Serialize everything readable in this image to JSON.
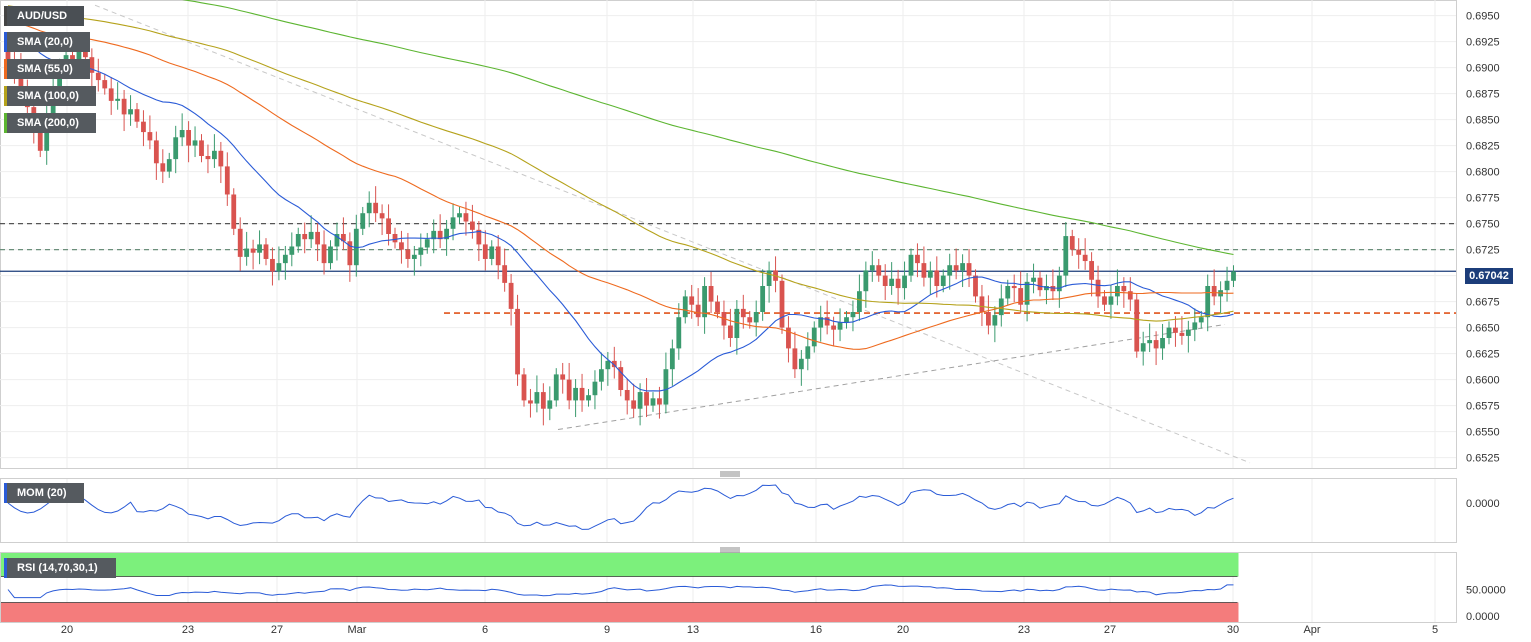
{
  "chart_data": [
    {
      "type": "candlestick",
      "title": "AUD/USD",
      "x_tick_labels": [
        "20",
        "23",
        "27",
        "Mar",
        "6",
        "9",
        "13",
        "16",
        "20",
        "23",
        "27",
        "30",
        "Apr",
        "5"
      ],
      "y_tick_labels": [
        "0.6950",
        "0.6925",
        "0.6900",
        "0.6875",
        "0.6850",
        "0.6825",
        "0.6800",
        "0.6775",
        "0.6750",
        "0.6725",
        "0.6700",
        "0.6675",
        "0.6650",
        "0.6625",
        "0.6600",
        "0.6575",
        "0.6550",
        "0.6525"
      ],
      "ylim": [
        0.6515,
        0.6965
      ],
      "current_price": "0.67042",
      "horizontal_levels": [
        {
          "value": 0.675,
          "style": "dashed",
          "color": "#555555"
        },
        {
          "value": 0.6725,
          "style": "dashed",
          "color": "#6b8f7b"
        },
        {
          "value": 0.67042,
          "style": "solid",
          "color": "#1c3d7a"
        },
        {
          "value": 0.6664,
          "style": "dashed",
          "color": "#e0541b"
        }
      ],
      "indicators": [
        {
          "name": "SMA (20,0)",
          "color": "#2a5bd7"
        },
        {
          "name": "SMA (55,0)",
          "color": "#ee6a1f"
        },
        {
          "name": "SMA (100,0)",
          "color": "#b5a21b"
        },
        {
          "name": "SMA (200,0)",
          "color": "#5cb531"
        }
      ],
      "closes": [
        0.6905,
        0.6898,
        0.688,
        0.6862,
        0.6838,
        0.682,
        0.6855,
        0.688,
        0.69,
        0.6912,
        0.6906,
        0.6918,
        0.691,
        0.6895,
        0.6888,
        0.688,
        0.6868,
        0.687,
        0.6855,
        0.686,
        0.6848,
        0.6838,
        0.683,
        0.6808,
        0.68,
        0.6812,
        0.6833,
        0.684,
        0.6825,
        0.683,
        0.6815,
        0.6812,
        0.682,
        0.6805,
        0.6778,
        0.6745,
        0.6718,
        0.6726,
        0.6722,
        0.673,
        0.6716,
        0.6704,
        0.6712,
        0.672,
        0.6728,
        0.674,
        0.6735,
        0.6742,
        0.673,
        0.6712,
        0.6728,
        0.674,
        0.6733,
        0.671,
        0.6745,
        0.676,
        0.677,
        0.676,
        0.6755,
        0.674,
        0.6732,
        0.6725,
        0.6716,
        0.672,
        0.6727,
        0.6735,
        0.6743,
        0.6735,
        0.6745,
        0.6756,
        0.676,
        0.6752,
        0.6744,
        0.673,
        0.6716,
        0.6728,
        0.671,
        0.6693,
        0.6668,
        0.6605,
        0.658,
        0.6577,
        0.6588,
        0.6572,
        0.658,
        0.6605,
        0.66,
        0.658,
        0.6592,
        0.658,
        0.6585,
        0.6598,
        0.661,
        0.6618,
        0.6612,
        0.659,
        0.658,
        0.6572,
        0.6588,
        0.6575,
        0.6582,
        0.6576,
        0.661,
        0.663,
        0.666,
        0.668,
        0.6672,
        0.666,
        0.669,
        0.6675,
        0.6665,
        0.6652,
        0.664,
        0.6668,
        0.666,
        0.6655,
        0.6665,
        0.669,
        0.6705,
        0.6695,
        0.665,
        0.663,
        0.661,
        0.662,
        0.6632,
        0.665,
        0.666,
        0.6652,
        0.6648,
        0.6655,
        0.666,
        0.6665,
        0.6685,
        0.6705,
        0.671,
        0.67,
        0.669,
        0.6697,
        0.6688,
        0.67,
        0.672,
        0.6712,
        0.6698,
        0.6705,
        0.669,
        0.67,
        0.671,
        0.6705,
        0.6712,
        0.67,
        0.668,
        0.6665,
        0.6652,
        0.6662,
        0.6678,
        0.669,
        0.6688,
        0.6672,
        0.6694,
        0.6698,
        0.6686,
        0.669,
        0.6685,
        0.67,
        0.6738,
        0.6725,
        0.672,
        0.6714,
        0.6696,
        0.668,
        0.6672,
        0.668,
        0.669,
        0.6685,
        0.6677,
        0.6627,
        0.6635,
        0.6638,
        0.663,
        0.664,
        0.665,
        0.6645,
        0.6642,
        0.6648,
        0.6655,
        0.666,
        0.669,
        0.668,
        0.6686,
        0.6695,
        0.6704
      ]
    },
    {
      "type": "line",
      "title": "MOM (20)",
      "y_tick_labels": [
        "0.0000"
      ]
    },
    {
      "type": "line",
      "title": "RSI (14,70,30,1)",
      "y_tick_labels": [
        "50.0000",
        "0.0000"
      ]
    }
  ]
}
